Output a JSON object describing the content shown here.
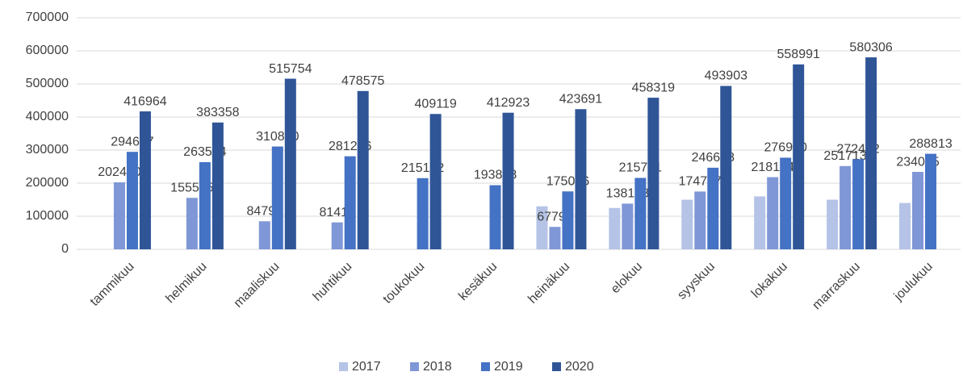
{
  "chart_data": {
    "type": "bar",
    "categories": [
      "tammikuu",
      "helmikuu",
      "maaliskuu",
      "huhtikuu",
      "toukokuu",
      "kesäkuu",
      "heinäkuu",
      "elokuu",
      "syyskuu",
      "lokakuu",
      "marraskuu",
      "joulukuu"
    ],
    "series": [
      {
        "name": "2017",
        "color": "#b4c3e6",
        "data_labels": false,
        "values": [
          null,
          null,
          null,
          null,
          null,
          null,
          130000,
          125000,
          150000,
          160000,
          150000,
          140000
        ]
      },
      {
        "name": "2018",
        "color": "#7f97d6",
        "data_labels": true,
        "values": [
          202460,
          155575,
          84798,
          81418,
          null,
          null,
          67792,
          138168,
          174747,
          218174,
          251713,
          234065
        ]
      },
      {
        "name": "2019",
        "color": "#4472c4",
        "data_labels": true,
        "values": [
          294627,
          263554,
          310800,
          281276,
          215182,
          193858,
          175086,
          215781,
          246688,
          276950,
          272492,
          288813
        ]
      },
      {
        "name": "2020",
        "color": "#2f5597",
        "data_labels": true,
        "values": [
          416964,
          383358,
          515754,
          478575,
          409119,
          412923,
          423691,
          458319,
          493903,
          558991,
          580306,
          null
        ]
      }
    ],
    "ylim": [
      0,
      700000
    ],
    "yticks": [
      0,
      100000,
      200000,
      300000,
      400000,
      500000,
      600000,
      700000
    ],
    "grid": true,
    "legend": "bottom"
  }
}
